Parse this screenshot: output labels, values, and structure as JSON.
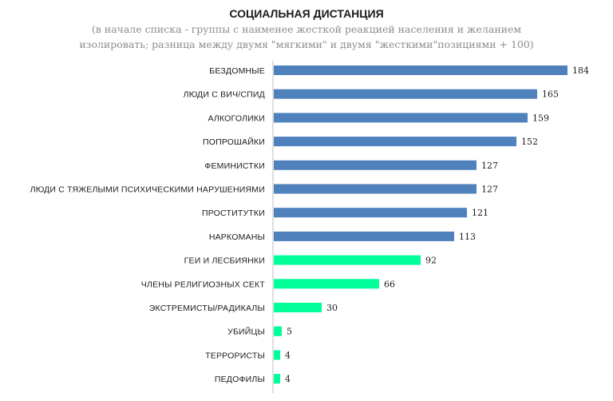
{
  "chart_data": {
    "type": "bar",
    "orientation": "horizontal",
    "title": "СОЦИАЛЬНАЯ ДИСТАНЦИЯ",
    "subtitle_lines": [
      "(в начале списка - группы с наименее жесткой реакцией населения и желанием",
      "изолировать; разница между двумя  \"мягкими\" и двумя \"жесткими\"позициями + 100)"
    ],
    "categories": [
      "БЕЗДОМНЫЕ",
      "ЛЮДИ С ВИЧ/СПИД",
      "АЛКОГОЛИКИ",
      "ПОПРОШАЙКИ",
      "ФЕМИНИСТКИ",
      "ЛЮДИ С ТЯЖЕЛЫМИ ПСИХИЧЕСКИМИ НАРУШЕНИЯМИ",
      "ПРОСТИТУТКИ",
      "НАРКОМАНЫ",
      "ГЕИ И ЛЕСБИЯНКИ",
      "ЧЛЕНЫ РЕЛИГИОЗНЫХ СЕКТ",
      "ЭКСТРЕМИСТЫ/РАДИКАЛЫ",
      "УБИЙЦЫ",
      "ТЕРРОРИСТЫ",
      "ПЕДОФИЛЫ"
    ],
    "values": [
      184,
      165,
      159,
      152,
      127,
      127,
      121,
      113,
      92,
      66,
      30,
      5,
      4,
      4
    ],
    "value_labels": [
      "184",
      "165",
      "159",
      "152",
      "127",
      "127",
      "121",
      "113",
      "92",
      "66",
      "30",
      "5",
      "4",
      "4"
    ],
    "xlim": [
      0,
      200
    ],
    "grid": false,
    "legend": "none",
    "colors": {
      "upper_group": "#4f81bd",
      "lower_group": "#00ff99",
      "axis": "#bfbfbf"
    },
    "upper_group_count": 8
  }
}
